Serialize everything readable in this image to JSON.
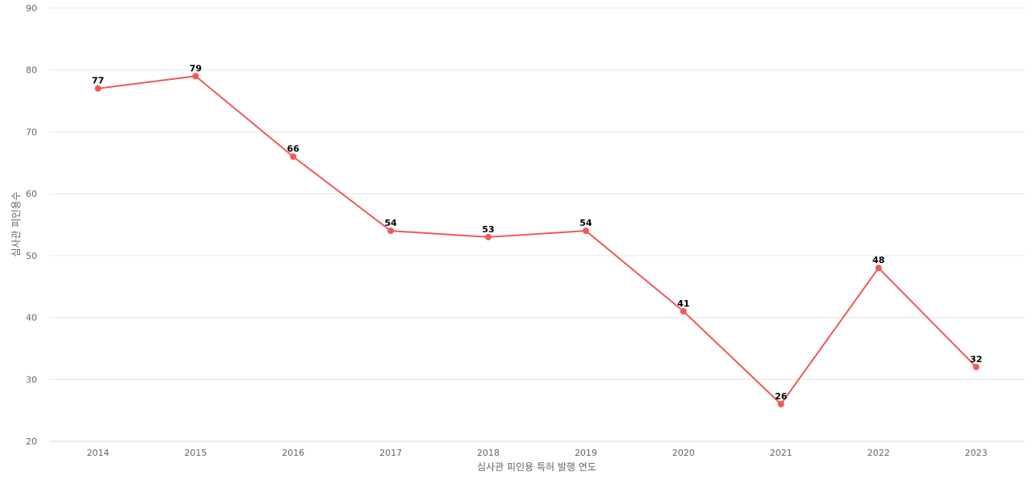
{
  "chart_data": {
    "type": "line",
    "categories": [
      "2014",
      "2015",
      "2016",
      "2017",
      "2018",
      "2019",
      "2020",
      "2021",
      "2022",
      "2023"
    ],
    "series": [
      {
        "values": [
          77,
          79,
          66,
          54,
          53,
          54,
          41,
          26,
          48,
          32
        ],
        "color": "#ef5a58"
      }
    ],
    "title": "",
    "xlabel": "심사관 피인용 특허 발행 연도",
    "ylabel": "심사관 피인용수",
    "ylim": [
      20,
      90
    ],
    "yticks": [
      20,
      30,
      40,
      50,
      60,
      70,
      80,
      90
    ],
    "grid": true,
    "legend": "none",
    "data_labels": true
  }
}
